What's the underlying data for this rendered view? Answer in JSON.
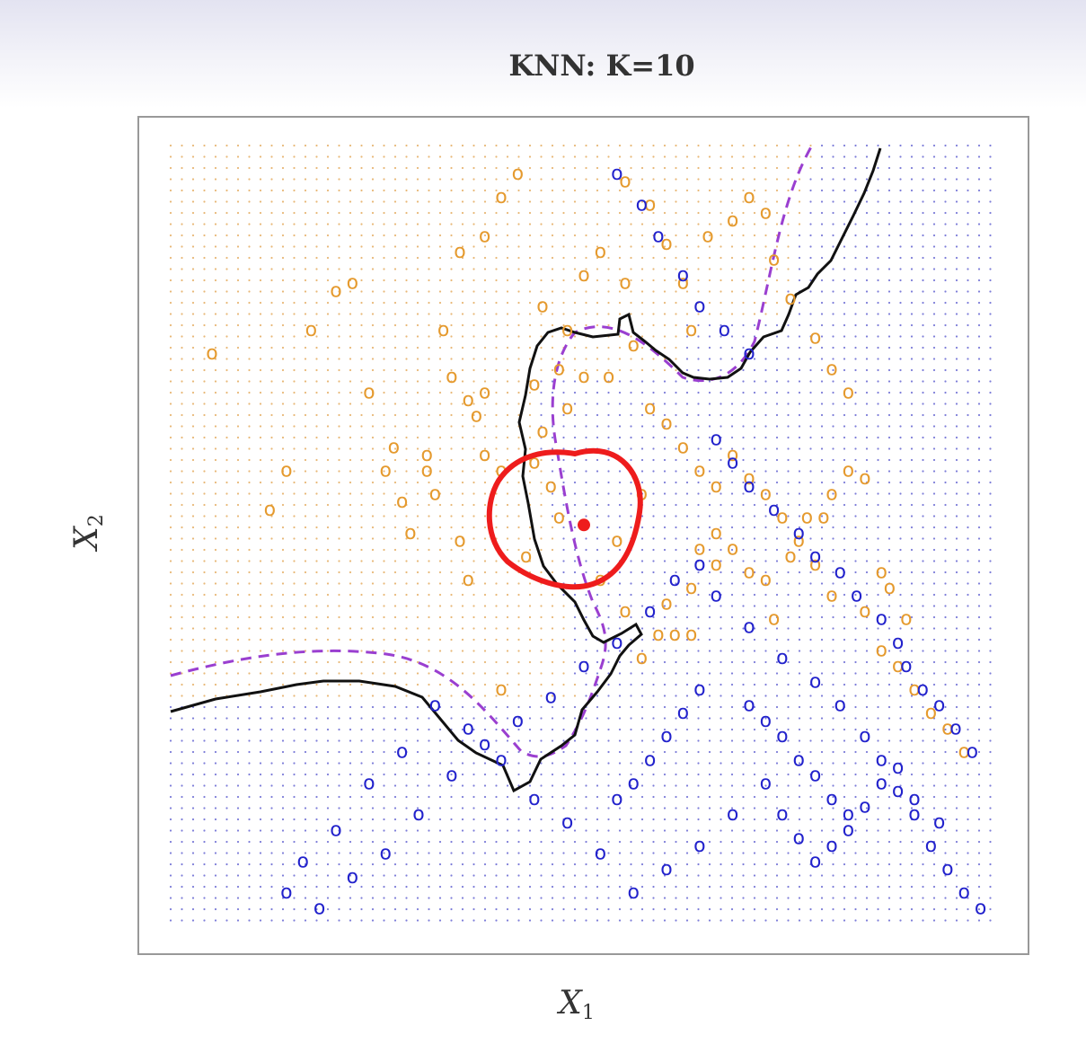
{
  "chart_data": {
    "type": "scatter",
    "title": "KNN: K=10",
    "xlabel": "X",
    "xlabel_sub": "1",
    "ylabel": "X",
    "ylabel_sub": "2",
    "point_glyph": "o",
    "grid": false,
    "background_grid_dots": true,
    "colors": {
      "orange": "#e59a2e",
      "blue": "#2222cc",
      "bayes_boundary": "#9a3fd0",
      "knn_boundary": "#111111",
      "highlight": "#ee1c1c",
      "frame": "#999999",
      "grid_orange": "#e8b877",
      "grid_blue": "#7d7dd9"
    },
    "series": [
      {
        "color_key": "orange",
        "points": [
          [
            0.05,
            0.73
          ],
          [
            0.12,
            0.53
          ],
          [
            0.14,
            0.58
          ],
          [
            0.17,
            0.76
          ],
          [
            0.2,
            0.81
          ],
          [
            0.22,
            0.82
          ],
          [
            0.24,
            0.68
          ],
          [
            0.26,
            0.58
          ],
          [
            0.28,
            0.54
          ],
          [
            0.29,
            0.5
          ],
          [
            0.31,
            0.6
          ],
          [
            0.33,
            0.76
          ],
          [
            0.34,
            0.7
          ],
          [
            0.36,
            0.67
          ],
          [
            0.37,
            0.65
          ],
          [
            0.38,
            0.68
          ],
          [
            0.38,
            0.6
          ],
          [
            0.4,
            0.58
          ],
          [
            0.44,
            0.59
          ],
          [
            0.45,
            0.63
          ],
          [
            0.46,
            0.56
          ],
          [
            0.47,
            0.52
          ],
          [
            0.48,
            0.66
          ],
          [
            0.52,
            0.44
          ],
          [
            0.55,
            0.4
          ],
          [
            0.57,
            0.34
          ],
          [
            0.59,
            0.37
          ],
          [
            0.64,
            0.48
          ],
          [
            0.66,
            0.46
          ],
          [
            0.31,
            0.58
          ],
          [
            0.32,
            0.55
          ],
          [
            0.35,
            0.49
          ],
          [
            0.36,
            0.44
          ],
          [
            0.4,
            0.3
          ],
          [
            0.43,
            0.47
          ],
          [
            0.54,
            0.49
          ],
          [
            0.57,
            0.55
          ],
          [
            0.6,
            0.41
          ],
          [
            0.61,
            0.37
          ],
          [
            0.63,
            0.37
          ],
          [
            0.63,
            0.43
          ],
          [
            0.27,
            0.61
          ],
          [
            0.66,
            0.5
          ],
          [
            0.68,
            0.48
          ],
          [
            0.7,
            0.45
          ],
          [
            0.72,
            0.44
          ],
          [
            0.73,
            0.39
          ],
          [
            0.75,
            0.47
          ],
          [
            0.77,
            0.52
          ],
          [
            0.79,
            0.52
          ],
          [
            0.8,
            0.55
          ],
          [
            0.82,
            0.58
          ],
          [
            0.84,
            0.57
          ],
          [
            0.86,
            0.45
          ],
          [
            0.87,
            0.43
          ],
          [
            0.89,
            0.39
          ],
          [
            0.45,
            0.79
          ],
          [
            0.48,
            0.76
          ],
          [
            0.5,
            0.83
          ],
          [
            0.52,
            0.86
          ],
          [
            0.55,
            0.82
          ],
          [
            0.6,
            0.87
          ],
          [
            0.62,
            0.82
          ],
          [
            0.63,
            0.76
          ],
          [
            0.65,
            0.88
          ],
          [
            0.68,
            0.9
          ],
          [
            0.7,
            0.93
          ],
          [
            0.72,
            0.91
          ],
          [
            0.73,
            0.85
          ],
          [
            0.75,
            0.8
          ],
          [
            0.78,
            0.75
          ],
          [
            0.8,
            0.71
          ],
          [
            0.82,
            0.68
          ],
          [
            0.35,
            0.86
          ],
          [
            0.38,
            0.88
          ],
          [
            0.4,
            0.93
          ],
          [
            0.42,
            0.96
          ],
          [
            0.55,
            0.95
          ],
          [
            0.58,
            0.92
          ],
          [
            0.44,
            0.69
          ],
          [
            0.47,
            0.71
          ],
          [
            0.5,
            0.7
          ],
          [
            0.53,
            0.7
          ],
          [
            0.56,
            0.74
          ],
          [
            0.58,
            0.66
          ],
          [
            0.6,
            0.64
          ],
          [
            0.62,
            0.61
          ],
          [
            0.64,
            0.58
          ],
          [
            0.66,
            0.56
          ],
          [
            0.68,
            0.6
          ],
          [
            0.7,
            0.57
          ],
          [
            0.72,
            0.55
          ],
          [
            0.74,
            0.52
          ],
          [
            0.76,
            0.49
          ],
          [
            0.78,
            0.46
          ],
          [
            0.8,
            0.42
          ],
          [
            0.84,
            0.4
          ],
          [
            0.86,
            0.35
          ],
          [
            0.88,
            0.33
          ],
          [
            0.9,
            0.3
          ],
          [
            0.92,
            0.27
          ],
          [
            0.94,
            0.25
          ],
          [
            0.96,
            0.22
          ]
        ]
      },
      {
        "color_key": "blue",
        "points": [
          [
            0.54,
            0.96
          ],
          [
            0.57,
            0.92
          ],
          [
            0.59,
            0.88
          ],
          [
            0.62,
            0.83
          ],
          [
            0.64,
            0.79
          ],
          [
            0.67,
            0.76
          ],
          [
            0.7,
            0.73
          ],
          [
            0.66,
            0.62
          ],
          [
            0.68,
            0.59
          ],
          [
            0.7,
            0.56
          ],
          [
            0.73,
            0.53
          ],
          [
            0.76,
            0.5
          ],
          [
            0.78,
            0.47
          ],
          [
            0.81,
            0.45
          ],
          [
            0.83,
            0.42
          ],
          [
            0.86,
            0.39
          ],
          [
            0.88,
            0.36
          ],
          [
            0.89,
            0.33
          ],
          [
            0.91,
            0.3
          ],
          [
            0.93,
            0.28
          ],
          [
            0.95,
            0.25
          ],
          [
            0.97,
            0.22
          ],
          [
            0.72,
            0.18
          ],
          [
            0.74,
            0.14
          ],
          [
            0.76,
            0.11
          ],
          [
            0.78,
            0.08
          ],
          [
            0.8,
            0.1
          ],
          [
            0.82,
            0.12
          ],
          [
            0.84,
            0.15
          ],
          [
            0.86,
            0.18
          ],
          [
            0.88,
            0.2
          ],
          [
            0.9,
            0.16
          ],
          [
            0.93,
            0.13
          ],
          [
            0.68,
            0.14
          ],
          [
            0.64,
            0.1
          ],
          [
            0.6,
            0.07
          ],
          [
            0.56,
            0.04
          ],
          [
            0.52,
            0.09
          ],
          [
            0.48,
            0.13
          ],
          [
            0.44,
            0.16
          ],
          [
            0.4,
            0.21
          ],
          [
            0.36,
            0.25
          ],
          [
            0.32,
            0.28
          ],
          [
            0.28,
            0.22
          ],
          [
            0.24,
            0.18
          ],
          [
            0.2,
            0.12
          ],
          [
            0.16,
            0.08
          ],
          [
            0.14,
            0.04
          ],
          [
            0.18,
            0.02
          ],
          [
            0.22,
            0.06
          ],
          [
            0.26,
            0.09
          ],
          [
            0.3,
            0.14
          ],
          [
            0.34,
            0.19
          ],
          [
            0.38,
            0.23
          ],
          [
            0.42,
            0.26
          ],
          [
            0.46,
            0.29
          ],
          [
            0.5,
            0.33
          ],
          [
            0.54,
            0.36
          ],
          [
            0.58,
            0.4
          ],
          [
            0.61,
            0.44
          ],
          [
            0.64,
            0.46
          ],
          [
            0.66,
            0.42
          ],
          [
            0.7,
            0.38
          ],
          [
            0.74,
            0.34
          ],
          [
            0.78,
            0.31
          ],
          [
            0.81,
            0.28
          ],
          [
            0.84,
            0.24
          ],
          [
            0.86,
            0.21
          ],
          [
            0.88,
            0.17
          ],
          [
            0.9,
            0.14
          ],
          [
            0.92,
            0.1
          ],
          [
            0.94,
            0.07
          ],
          [
            0.96,
            0.04
          ],
          [
            0.98,
            0.02
          ],
          [
            0.7,
            0.28
          ],
          [
            0.72,
            0.26
          ],
          [
            0.74,
            0.24
          ],
          [
            0.76,
            0.21
          ],
          [
            0.78,
            0.19
          ],
          [
            0.8,
            0.16
          ],
          [
            0.82,
            0.14
          ],
          [
            0.64,
            0.3
          ],
          [
            0.62,
            0.27
          ],
          [
            0.6,
            0.24
          ],
          [
            0.58,
            0.21
          ],
          [
            0.56,
            0.18
          ],
          [
            0.54,
            0.16
          ]
        ]
      }
    ],
    "highlight_point": [
      0.5,
      0.51
    ]
  }
}
